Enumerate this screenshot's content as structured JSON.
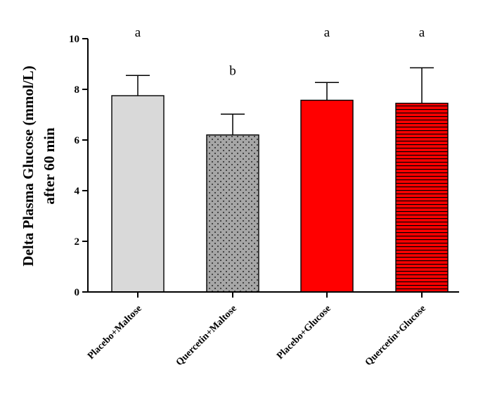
{
  "chart_data": {
    "type": "bar",
    "title": "",
    "xlabel": "",
    "ylabel_lines": [
      "Delta Plasma Glucose (mmol/L)",
      "after 60 min"
    ],
    "ylim": [
      0,
      10
    ],
    "yticks": [
      0,
      2,
      4,
      6,
      8,
      10
    ],
    "categories": [
      "Placebo+Maltose",
      "Quercetin+Maltose",
      "Placebo+Glucose",
      "Quercetin+Glucose"
    ],
    "values": [
      7.75,
      6.2,
      7.57,
      7.45
    ],
    "error_upper": [
      0.8,
      0.82,
      0.7,
      1.4
    ],
    "significance": [
      "a",
      "b",
      "a",
      "a"
    ],
    "colors": [
      "#d9d9d9",
      "#a6a6a6",
      "#ff0000",
      "#ff0000"
    ],
    "patterns": [
      "solid",
      "dots",
      "solid",
      "hlines"
    ]
  }
}
